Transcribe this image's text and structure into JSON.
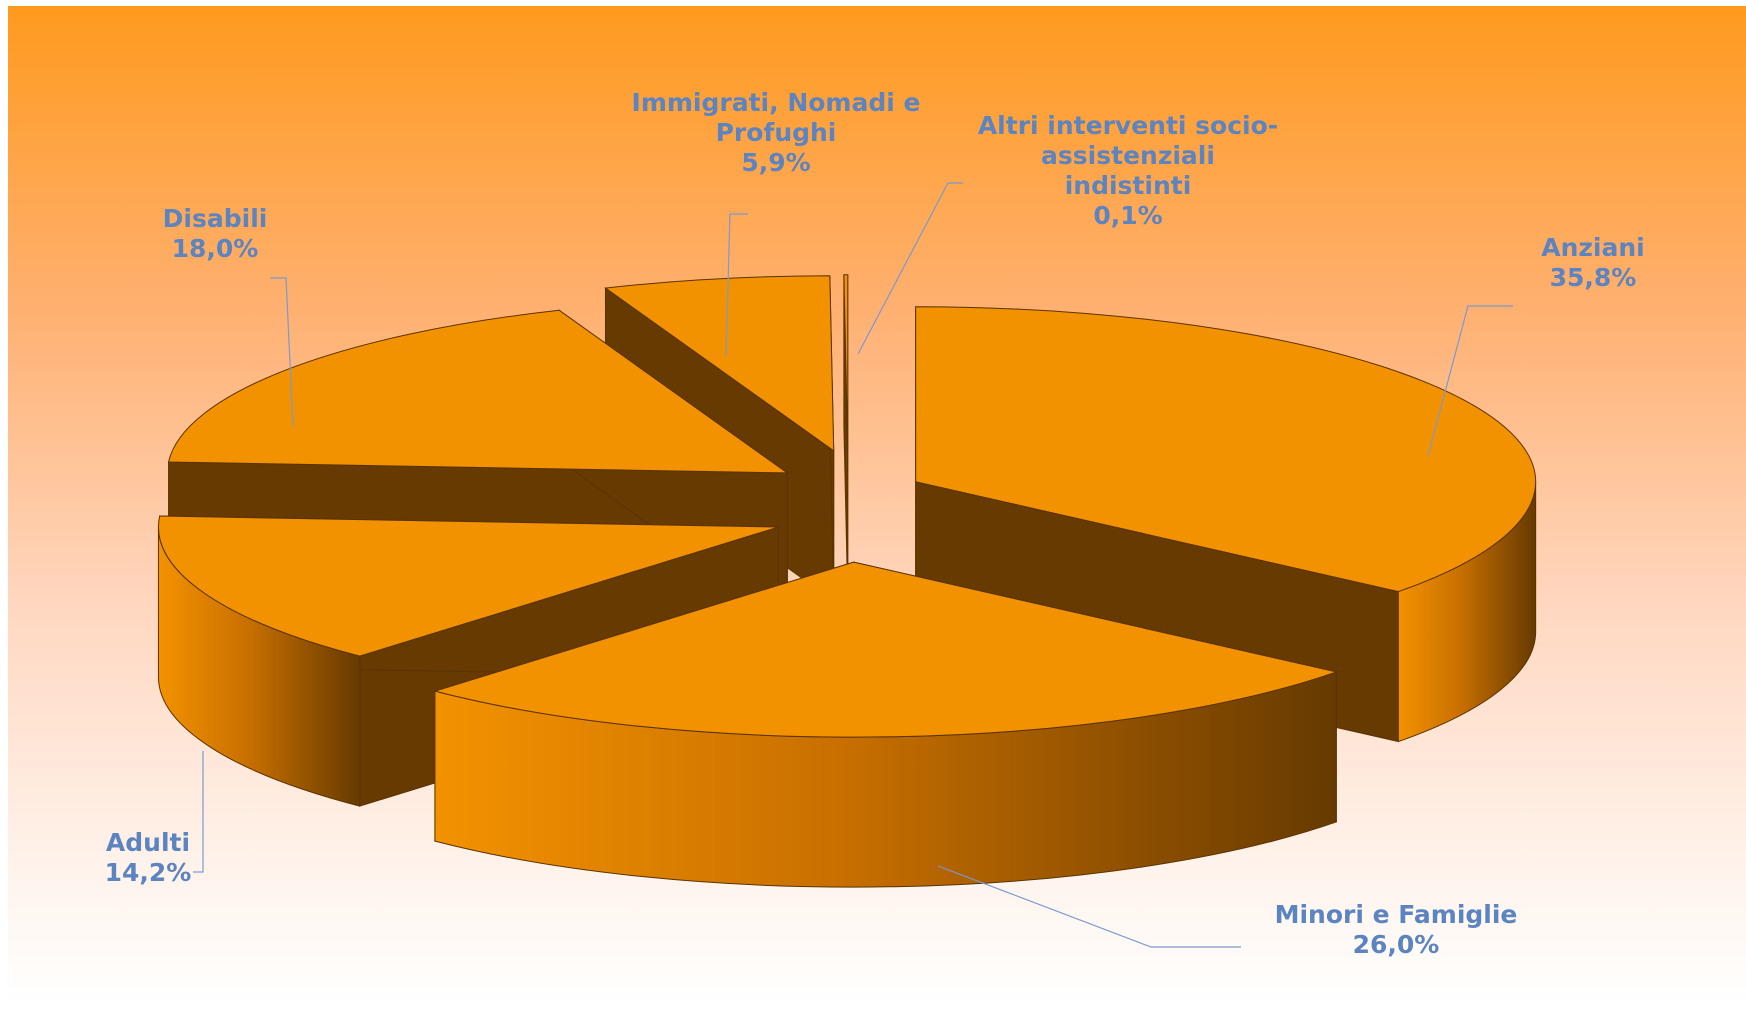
{
  "chart_data": {
    "type": "pie",
    "style": "3d-exploded",
    "slices": [
      {
        "label": "Anziani",
        "value": 35.8,
        "value_label": "35,8%"
      },
      {
        "label": "Minori e Famiglie",
        "value": 26.0,
        "value_label": "26,0%"
      },
      {
        "label": "Adulti",
        "value": 14.2,
        "value_label": "14,2%"
      },
      {
        "label": "Disabili",
        "value": 18.0,
        "value_label": "18,0%"
      },
      {
        "label": "Immigrati, Nomadi e Profughi",
        "label_lines": [
          "Immigrati, Nomadi e",
          "Profughi"
        ],
        "value": 5.9,
        "value_label": "5,9%"
      },
      {
        "label": "Altri interventi socio-assistenziali indistinti",
        "label_lines": [
          "Altri interventi socio-",
          "assistenziali",
          "indistinti"
        ],
        "value": 0.1,
        "value_label": "0,1%"
      }
    ],
    "colors": {
      "top": "#f39200",
      "side_light": "#f39200",
      "side_dark": "#663a00",
      "label_text": "#5b84c0",
      "leader_line": "#7a9ad0",
      "edge": "#5a3300",
      "background_top": "#ff9a1e",
      "background_bottom": "#ffffff"
    }
  }
}
